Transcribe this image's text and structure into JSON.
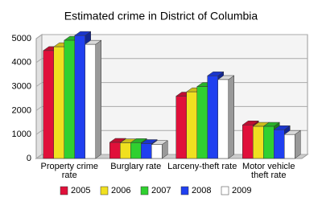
{
  "chart_data": {
    "type": "bar3d",
    "title": "Estimated crime in District of Columbia",
    "categories": [
      "Property crime rate",
      "Burglary rate",
      "Larceny-theft rate",
      "Motor vehicle theft rate"
    ],
    "series": [
      {
        "name": "2005",
        "color": "#e0103a",
        "values": [
          4500,
          670,
          2600,
          1400
        ]
      },
      {
        "name": "2006",
        "color": "#f0e020",
        "values": [
          4660,
          650,
          2780,
          1340
        ]
      },
      {
        "name": "2007",
        "color": "#30d030",
        "values": [
          4930,
          660,
          3000,
          1340
        ]
      },
      {
        "name": "2008",
        "color": "#2040f0",
        "values": [
          5130,
          620,
          3450,
          1200
        ]
      },
      {
        "name": "2009",
        "color": "#ffffff",
        "values": [
          4760,
          580,
          3290,
          1000
        ]
      }
    ],
    "ylim": [
      0,
      5000
    ],
    "yticks": [
      0,
      1000,
      2000,
      3000,
      4000,
      5000
    ],
    "grid": true,
    "legend": "bottom"
  }
}
